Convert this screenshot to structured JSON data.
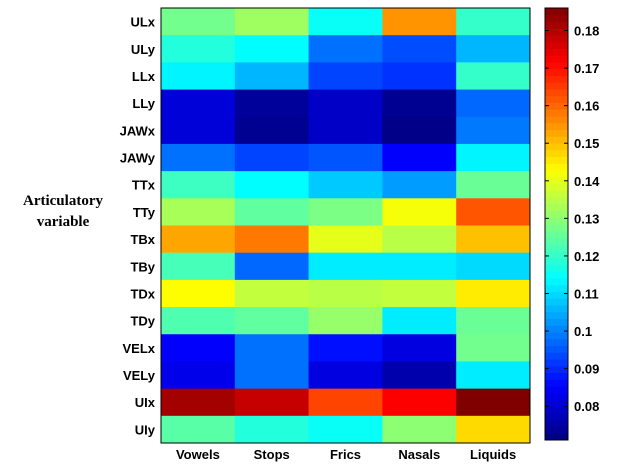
{
  "chart_data": {
    "type": "heatmap",
    "ylabel": "Articulatory variable",
    "ylabel_lines": [
      "Articulatory",
      "variable"
    ],
    "xlabel": "",
    "title": "",
    "columns": [
      "Vowels",
      "Stops",
      "Frics",
      "Nasals",
      "Liquids"
    ],
    "rows": [
      "ULx",
      "ULy",
      "LLx",
      "LLy",
      "JAWx",
      "JAWy",
      "TTx",
      "TTy",
      "TBx",
      "TBy",
      "TDx",
      "TDy",
      "VELx",
      "VELy",
      "UIx",
      "UIy"
    ],
    "values": [
      [
        0.127,
        0.132,
        0.115,
        0.155,
        0.12
      ],
      [
        0.118,
        0.114,
        0.098,
        0.094,
        0.106
      ],
      [
        0.113,
        0.106,
        0.093,
        0.091,
        0.12
      ],
      [
        0.081,
        0.074,
        0.079,
        0.073,
        0.097
      ],
      [
        0.081,
        0.073,
        0.079,
        0.072,
        0.099
      ],
      [
        0.098,
        0.093,
        0.095,
        0.085,
        0.113
      ],
      [
        0.121,
        0.114,
        0.108,
        0.103,
        0.126
      ],
      [
        0.133,
        0.125,
        0.128,
        0.142,
        0.162
      ],
      [
        0.153,
        0.158,
        0.14,
        0.135,
        0.15
      ],
      [
        0.122,
        0.097,
        0.112,
        0.112,
        0.11
      ],
      [
        0.143,
        0.136,
        0.135,
        0.136,
        0.145
      ],
      [
        0.123,
        0.125,
        0.131,
        0.112,
        0.126
      ],
      [
        0.085,
        0.098,
        0.087,
        0.082,
        0.127
      ],
      [
        0.083,
        0.098,
        0.082,
        0.076,
        0.112
      ],
      [
        0.182,
        0.178,
        0.164,
        0.172,
        0.186
      ],
      [
        0.124,
        0.118,
        0.115,
        0.13,
        0.147
      ]
    ],
    "colorbar": {
      "min": 0.071,
      "max": 0.186,
      "ticks": [
        "0.08",
        "0.09",
        "0.1",
        "0.11",
        "0.12",
        "0.13",
        "0.14",
        "0.15",
        "0.16",
        "0.17",
        "0.18"
      ],
      "colormap": "jet"
    }
  }
}
